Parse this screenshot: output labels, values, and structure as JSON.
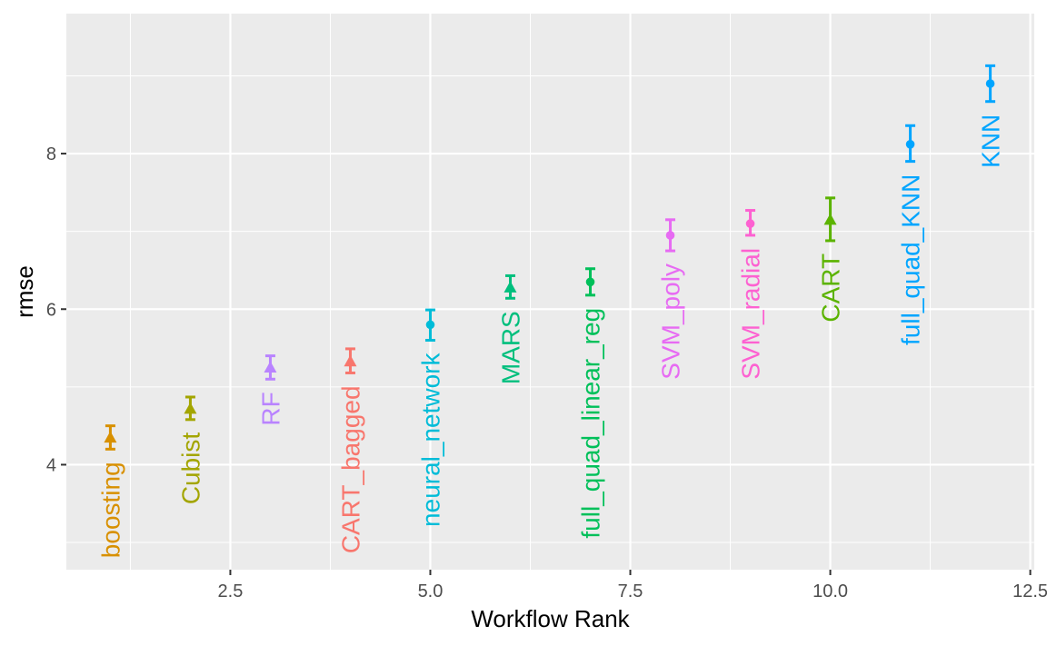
{
  "chart_data": {
    "type": "scatter",
    "xlabel": "Workflow Rank",
    "ylabel": "rmse",
    "xlim": [
      0.45,
      12.55
    ],
    "ylim": [
      2.65,
      9.8
    ],
    "x_ticks": [
      2.5,
      5.0,
      7.5,
      10.0,
      12.5
    ],
    "x_tick_labels": [
      "2.5",
      "5.0",
      "7.5",
      "10.0",
      "12.5"
    ],
    "y_ticks": [
      4,
      6,
      8
    ],
    "y_tick_labels": [
      "4",
      "6",
      "8"
    ],
    "grid": true,
    "legend": "none",
    "points": [
      {
        "rank": 1,
        "label": "boosting",
        "rmse": 4.35,
        "lower": 4.2,
        "upper": 4.5,
        "marker": "triangle",
        "color": "#D89000"
      },
      {
        "rank": 2,
        "label": "Cubist",
        "rmse": 4.72,
        "lower": 4.58,
        "upper": 4.87,
        "marker": "triangle",
        "color": "#A3A500"
      },
      {
        "rank": 3,
        "label": "RF",
        "rmse": 5.25,
        "lower": 5.1,
        "upper": 5.4,
        "marker": "triangle",
        "color": "#B983FF"
      },
      {
        "rank": 4,
        "label": "CART_bagged",
        "rmse": 5.33,
        "lower": 5.18,
        "upper": 5.49,
        "marker": "triangle",
        "color": "#F8766D"
      },
      {
        "rank": 5,
        "label": "neural_network",
        "rmse": 5.8,
        "lower": 5.6,
        "upper": 5.99,
        "marker": "circle",
        "color": "#00BCD8"
      },
      {
        "rank": 6,
        "label": "MARS",
        "rmse": 6.28,
        "lower": 6.14,
        "upper": 6.43,
        "marker": "triangle",
        "color": "#00BF7D"
      },
      {
        "rank": 7,
        "label": "full_quad_linear_reg",
        "rmse": 6.35,
        "lower": 6.18,
        "upper": 6.52,
        "marker": "circle",
        "color": "#00C05A"
      },
      {
        "rank": 8,
        "label": "SVM_poly",
        "rmse": 6.95,
        "lower": 6.75,
        "upper": 7.15,
        "marker": "circle",
        "color": "#E76BF3"
      },
      {
        "rank": 9,
        "label": "SVM_radial",
        "rmse": 7.1,
        "lower": 6.95,
        "upper": 7.27,
        "marker": "circle",
        "color": "#FD61D1"
      },
      {
        "rank": 10,
        "label": "CART",
        "rmse": 7.15,
        "lower": 6.88,
        "upper": 7.43,
        "marker": "triangle",
        "color": "#5BB300"
      },
      {
        "rank": 11,
        "label": "full_quad_KNN",
        "rmse": 8.12,
        "lower": 7.9,
        "upper": 8.36,
        "marker": "circle",
        "color": "#00A5FF"
      },
      {
        "rank": 12,
        "label": "KNN",
        "rmse": 8.9,
        "lower": 8.67,
        "upper": 9.13,
        "marker": "circle",
        "color": "#00A5FF"
      }
    ]
  }
}
